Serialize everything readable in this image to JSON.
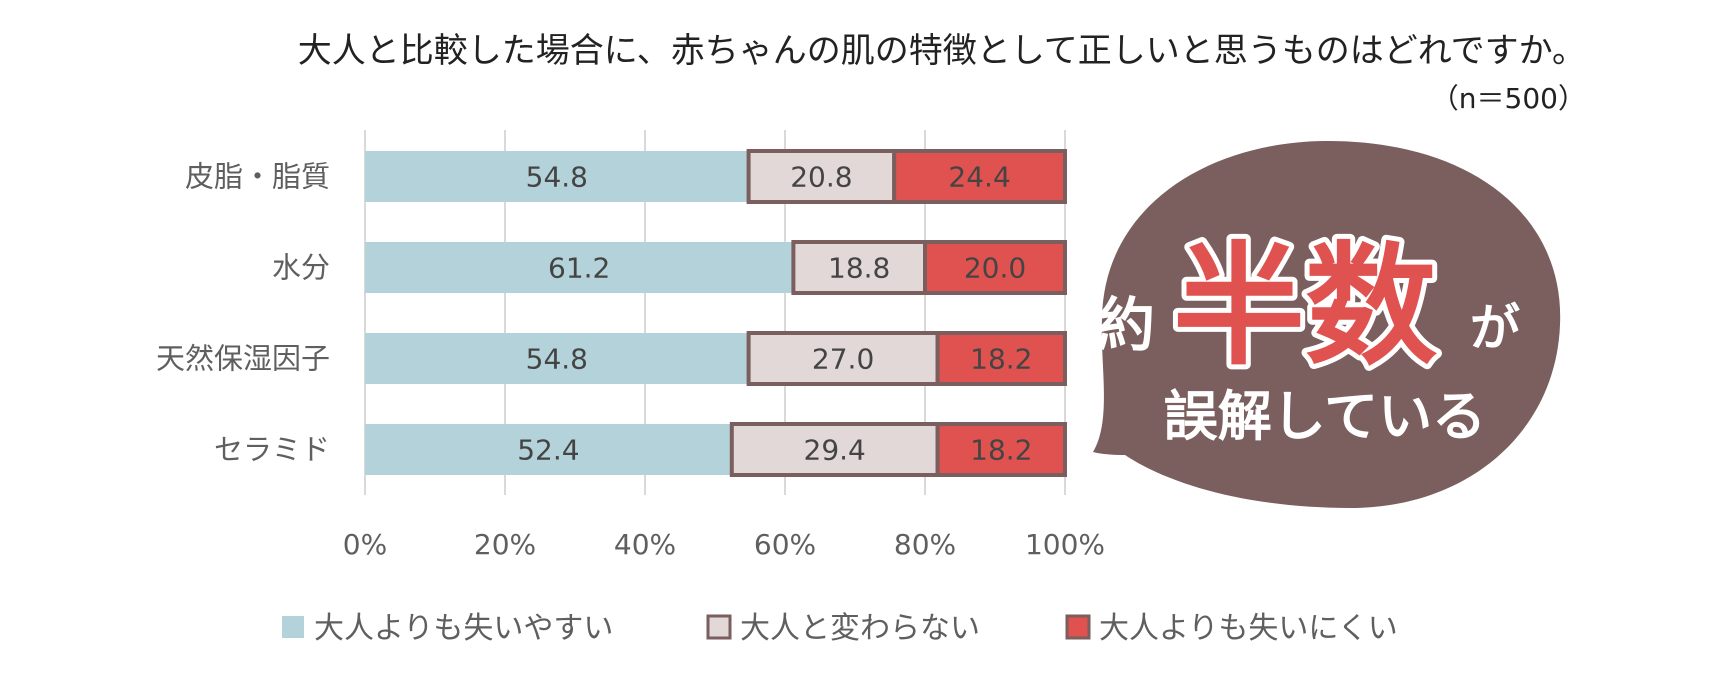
{
  "chart_data": {
    "type": "bar",
    "orientation": "horizontal",
    "stacked": true,
    "title": "大人と比較した場合に、赤ちゃんの肌の特徴として正しいと思うものはどれですか。",
    "subtitle": "（n＝500）",
    "categories": [
      "皮脂・脂質",
      "水分",
      "天然保湿因子",
      "セラミド"
    ],
    "series": [
      {
        "name": "大人よりも失いやすい",
        "values": [
          54.8,
          61.2,
          54.8,
          52.4
        ],
        "color": "#b3d2d9"
      },
      {
        "name": "大人と変わらない",
        "values": [
          20.8,
          18.8,
          27.0,
          29.4
        ],
        "color": "#e3d8d8"
      },
      {
        "name": "大人よりも失いにくい",
        "values": [
          24.4,
          20.0,
          18.2,
          18.2
        ],
        "color": "#e0524f"
      }
    ],
    "xlim": [
      0,
      100
    ],
    "xticks": [
      "0%",
      "20%",
      "40%",
      "60%",
      "80%",
      "100%"
    ],
    "grid": true,
    "legend_position": "bottom",
    "outline_color": "#7b5e5e",
    "annotation": {
      "prefix": "約",
      "highlight": "半数",
      "suffix": "が",
      "line2": "誤解している",
      "bubble_color": "#7b5e5e",
      "highlight_color": "#e0524f"
    }
  }
}
